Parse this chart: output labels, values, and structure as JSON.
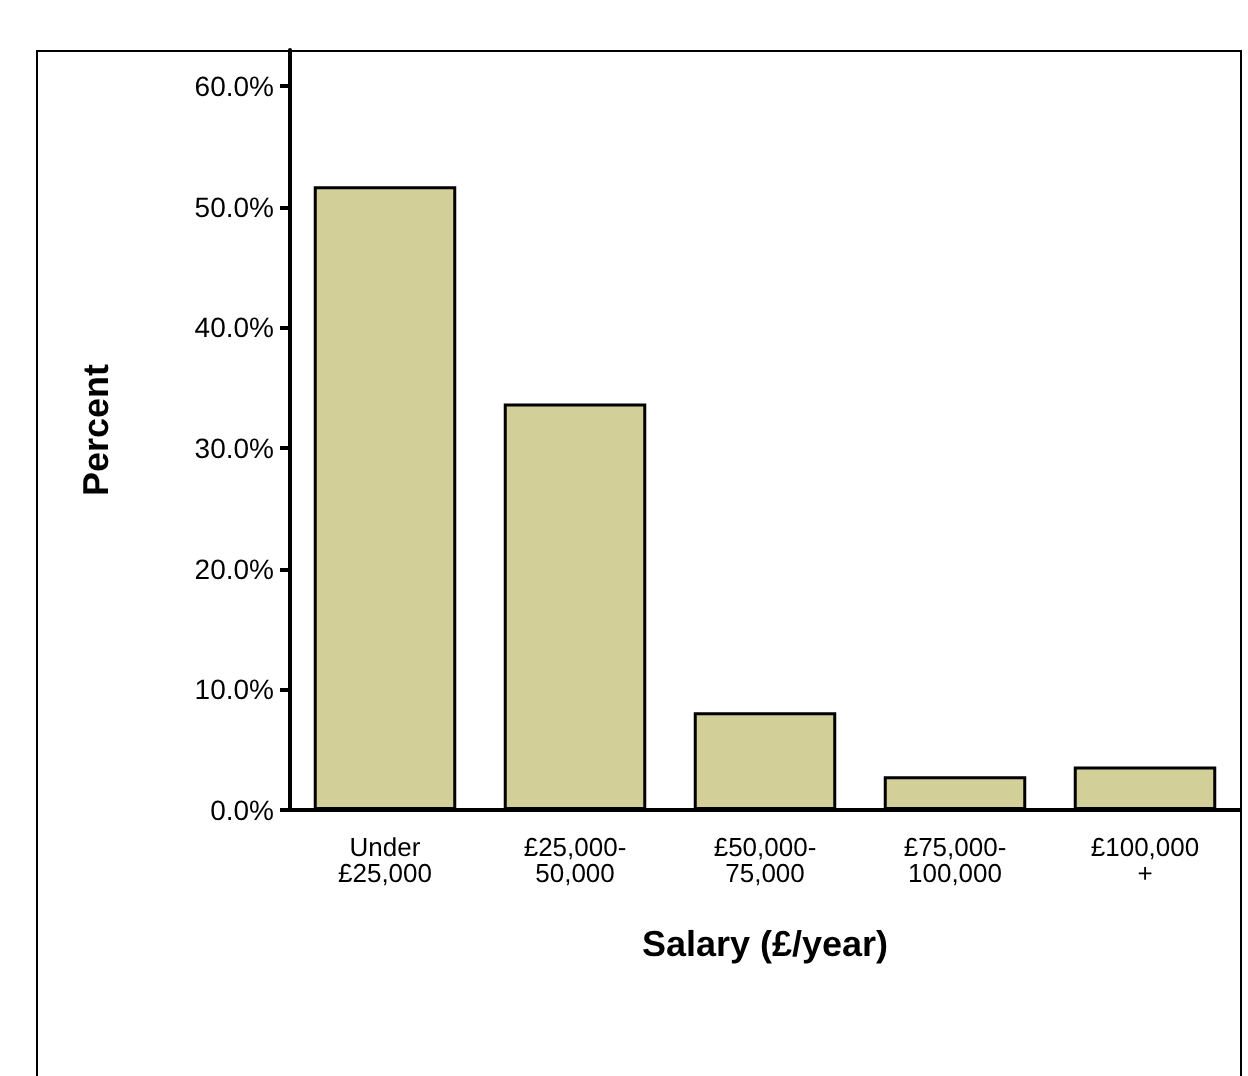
{
  "chart_data": {
    "type": "bar",
    "xlabel": "Salary (£/year)",
    "ylabel": "Percent",
    "categories": [
      "Under\n£25,000",
      "£25,000-\n50,000",
      "£50,000-\n75,000",
      "£75,000-\n100,000",
      "£100,000\n+"
    ],
    "values": [
      51.7,
      33.7,
      8.1,
      2.8,
      3.6
    ],
    "color": "#d3cf98",
    "ylim": [
      0,
      63
    ],
    "yticks": [
      {
        "value": 0,
        "label": "0.0%"
      },
      {
        "value": 10,
        "label": "10.0%"
      },
      {
        "value": 20,
        "label": "20.0%"
      },
      {
        "value": 30,
        "label": "30.0%"
      },
      {
        "value": 40,
        "label": "40.0%"
      },
      {
        "value": 50,
        "label": "50.0%"
      },
      {
        "value": 60,
        "label": "60.0%"
      }
    ],
    "grid": false
  }
}
